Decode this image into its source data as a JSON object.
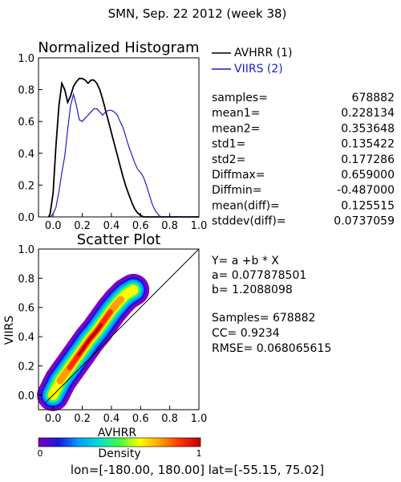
{
  "page": {
    "title": "SMN,  Sep. 22 2012 (week 38)",
    "footer": {
      "lon_label": "lon=[",
      "lon_values": "-180.00, 180.00",
      "lat_label": "] lat=[",
      "lat_values": "-55.15, 75.02",
      "close": "]"
    }
  },
  "chart_data": [
    {
      "type": "line",
      "title": "Normalized Histogram",
      "xlabel": "",
      "ylabel": "",
      "xlim": [
        -0.1,
        1.0
      ],
      "ylim": [
        0.0,
        1.0
      ],
      "x_ticks": [
        "0.0",
        "0.2",
        "0.4",
        "0.6",
        "0.8",
        "1.0"
      ],
      "y_ticks": [
        "0.0",
        "0.2",
        "0.4",
        "0.6",
        "0.8",
        "1.0"
      ],
      "legend_position": "right",
      "colors": {
        "avhrr": "#000000",
        "viirs": "#1c1ccc"
      },
      "series": [
        {
          "name": "AVHRR (1)",
          "color": "#000000",
          "points": [
            [
              -0.03,
              0.0
            ],
            [
              -0.02,
              0.02
            ],
            [
              0.0,
              0.15
            ],
            [
              0.02,
              0.45
            ],
            [
              0.04,
              0.7
            ],
            [
              0.06,
              0.84
            ],
            [
              0.08,
              0.8
            ],
            [
              0.1,
              0.72
            ],
            [
              0.12,
              0.76
            ],
            [
              0.14,
              0.82
            ],
            [
              0.16,
              0.85
            ],
            [
              0.18,
              0.87
            ],
            [
              0.2,
              0.87
            ],
            [
              0.22,
              0.86
            ],
            [
              0.24,
              0.84
            ],
            [
              0.26,
              0.86
            ],
            [
              0.28,
              0.86
            ],
            [
              0.3,
              0.84
            ],
            [
              0.32,
              0.8
            ],
            [
              0.34,
              0.74
            ],
            [
              0.36,
              0.67
            ],
            [
              0.38,
              0.6
            ],
            [
              0.4,
              0.53
            ],
            [
              0.42,
              0.46
            ],
            [
              0.44,
              0.39
            ],
            [
              0.46,
              0.32
            ],
            [
              0.48,
              0.25
            ],
            [
              0.5,
              0.19
            ],
            [
              0.52,
              0.14
            ],
            [
              0.54,
              0.09
            ],
            [
              0.56,
              0.05
            ],
            [
              0.58,
              0.025
            ],
            [
              0.6,
              0.01
            ],
            [
              0.62,
              0.0
            ],
            [
              1.0,
              0.0
            ]
          ]
        },
        {
          "name": "VIIRS (2)",
          "color": "#1c1ccc",
          "points": [
            [
              -0.02,
              0.0
            ],
            [
              0.0,
              0.02
            ],
            [
              0.02,
              0.06
            ],
            [
              0.04,
              0.16
            ],
            [
              0.06,
              0.28
            ],
            [
              0.08,
              0.38
            ],
            [
              0.1,
              0.55
            ],
            [
              0.12,
              0.7
            ],
            [
              0.14,
              0.77
            ],
            [
              0.16,
              0.7
            ],
            [
              0.18,
              0.61
            ],
            [
              0.2,
              0.6
            ],
            [
              0.22,
              0.62
            ],
            [
              0.24,
              0.64
            ],
            [
              0.26,
              0.66
            ],
            [
              0.28,
              0.68
            ],
            [
              0.3,
              0.68
            ],
            [
              0.32,
              0.66
            ],
            [
              0.34,
              0.64
            ],
            [
              0.36,
              0.66
            ],
            [
              0.38,
              0.67
            ],
            [
              0.4,
              0.67
            ],
            [
              0.42,
              0.66
            ],
            [
              0.44,
              0.64
            ],
            [
              0.46,
              0.6
            ],
            [
              0.48,
              0.56
            ],
            [
              0.5,
              0.5
            ],
            [
              0.52,
              0.44
            ],
            [
              0.54,
              0.39
            ],
            [
              0.56,
              0.34
            ],
            [
              0.58,
              0.3
            ],
            [
              0.6,
              0.28
            ],
            [
              0.62,
              0.25
            ],
            [
              0.64,
              0.2
            ],
            [
              0.66,
              0.14
            ],
            [
              0.68,
              0.08
            ],
            [
              0.7,
              0.04
            ],
            [
              0.72,
              0.015
            ],
            [
              0.74,
              0.0
            ],
            [
              1.0,
              0.0
            ]
          ]
        }
      ],
      "stats": [
        {
          "label": "samples=",
          "value": "678882"
        },
        {
          "label": "mean1=",
          "value": "0.228134"
        },
        {
          "label": "mean2=",
          "value": "0.353648"
        },
        {
          "label": "std1=",
          "value": "0.135422"
        },
        {
          "label": "std2=",
          "value": "0.177286"
        },
        {
          "label": "Diffmax=",
          "value": "0.659000"
        },
        {
          "label": "Diffmin=",
          "value": "-0.487000"
        },
        {
          "label": "mean(diff)=",
          "value": "0.125515"
        },
        {
          "label": "stddev(diff)=",
          "value": "0.0737059"
        }
      ]
    },
    {
      "type": "scatter",
      "title": "Scatter Plot",
      "xlabel": "AVHRR",
      "ylabel": "VIIRS",
      "xlim": [
        -0.1,
        1.0
      ],
      "ylim": [
        -0.1,
        1.0
      ],
      "x_ticks": [
        "0.0",
        "0.2",
        "0.4",
        "0.6",
        "0.8",
        "1.0"
      ],
      "y_ticks": [
        "0.0",
        "0.2",
        "0.4",
        "0.6",
        "0.8",
        "1.0"
      ],
      "fit": {
        "a": 0.077878501,
        "b": 1.2088098
      },
      "identity_line": true,
      "density_ridge": [
        [
          0.0,
          0.0
        ],
        [
          0.05,
          0.1
        ],
        [
          0.1,
          0.17
        ],
        [
          0.15,
          0.24
        ],
        [
          0.2,
          0.31
        ],
        [
          0.25,
          0.38
        ],
        [
          0.3,
          0.44
        ],
        [
          0.35,
          0.51
        ],
        [
          0.4,
          0.58
        ],
        [
          0.45,
          0.64
        ],
        [
          0.5,
          0.69
        ],
        [
          0.55,
          0.72
        ]
      ],
      "annotations": [
        {
          "label": "Y= a +b * X",
          "value": ""
        },
        {
          "label": "a=",
          "value": "0.077878501"
        },
        {
          "label": "b=",
          "value": "1.2088098"
        },
        {
          "label": "Samples=",
          "value": "678882"
        },
        {
          "label": "CC=",
          "value": "0.9234"
        },
        {
          "label": "RMSE=",
          "value": "0.068065615"
        }
      ]
    },
    {
      "type": "heatmap",
      "title": "Density",
      "range": [
        0,
        1
      ],
      "tick_labels": [
        "0",
        "1"
      ],
      "colormap": [
        "#8000c0",
        "#1818e0",
        "#00a0ff",
        "#00e0d0",
        "#40ff40",
        "#ffff00",
        "#ffa000",
        "#ff3000",
        "#c00000"
      ]
    }
  ]
}
